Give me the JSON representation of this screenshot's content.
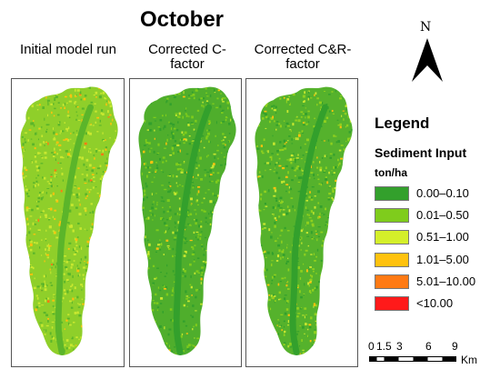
{
  "title": "October",
  "panels": [
    {
      "label": "Initial model run"
    },
    {
      "label": "Corrected C-\nfactor"
    },
    {
      "label": "Corrected C&R-\nfactor"
    }
  ],
  "north_arrow": {
    "letter": "N"
  },
  "legend": {
    "title": "Legend",
    "subtitle": "Sediment Input",
    "unit": "ton/ha",
    "classes": [
      {
        "label": "0.00–0.10",
        "color": "#33a02c"
      },
      {
        "label": "0.01–0.50",
        "color": "#7fcc1c"
      },
      {
        "label": "0.51–1.00",
        "color": "#d4ef2a"
      },
      {
        "label": "1.01–5.00",
        "color": "#ffc20e"
      },
      {
        "label": "5.01–10.00",
        "color": "#ff7a14"
      },
      {
        "label": "<10.00",
        "color": "#ff1a1a"
      }
    ]
  },
  "scale_bar": {
    "ticks": [
      "0",
      "1.5",
      "3",
      "6",
      "9"
    ],
    "unit": "Km"
  }
}
